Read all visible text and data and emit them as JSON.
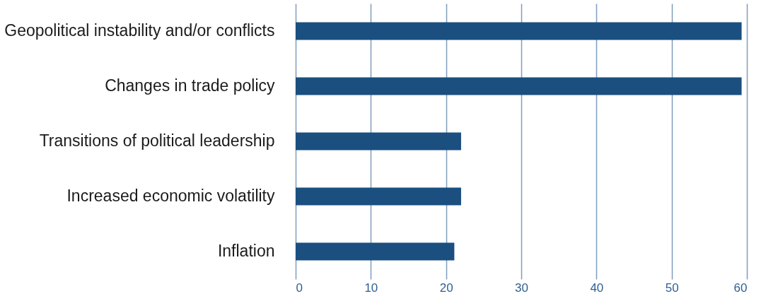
{
  "chart_data": {
    "type": "bar",
    "orientation": "horizontal",
    "categories": [
      "Geopolitical instability and/or conflicts",
      "Changes in trade policy",
      "Transitions of political leadership",
      "Increased economic volatility",
      "Inflation"
    ],
    "values": [
      59.3,
      59.3,
      22.0,
      22.0,
      21.1
    ],
    "color": "#1a4f80",
    "xlim": [
      0,
      60
    ],
    "xticks": [
      0,
      10,
      20,
      30,
      40,
      50,
      60
    ],
    "grid": "x"
  }
}
